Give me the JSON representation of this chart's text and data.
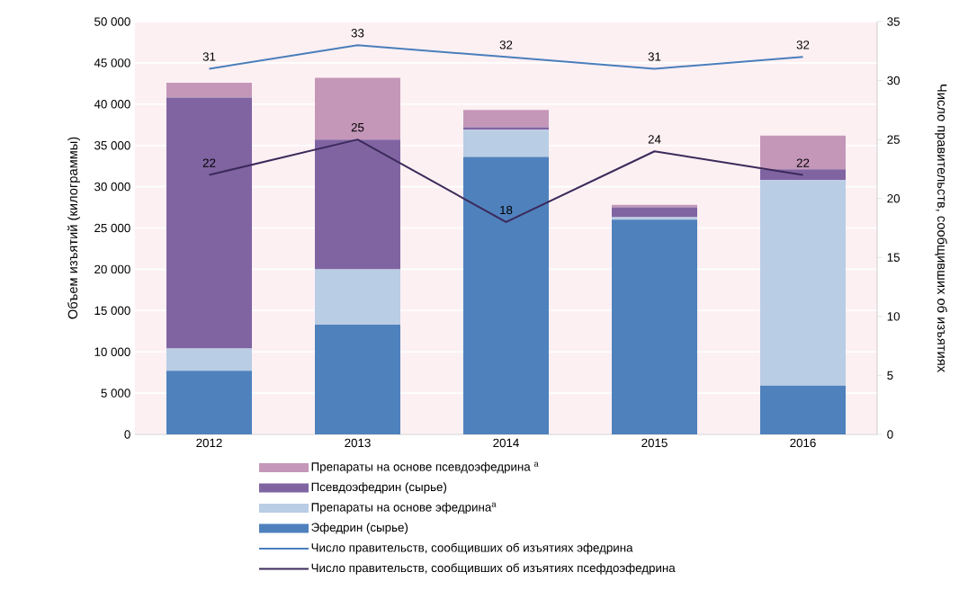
{
  "chart_data": {
    "type": "bar",
    "stacked": true,
    "categories": [
      "2012",
      "2013",
      "2014",
      "2015",
      "2016"
    ],
    "ylabel": "Объем изъятий (килограммы)",
    "y2label": "Число правительств, сообщивших об изъятиях",
    "ylim": [
      0,
      50000
    ],
    "yticks": [
      {
        "value": 0,
        "label": "0"
      },
      {
        "value": 5000,
        "label": "5 000"
      },
      {
        "value": 10000,
        "label": "10 000"
      },
      {
        "value": 15000,
        "label": "15 000"
      },
      {
        "value": 20000,
        "label": "20 000"
      },
      {
        "value": 25000,
        "label": "25 000"
      },
      {
        "value": 30000,
        "label": "30 000"
      },
      {
        "value": 35000,
        "label": "35 000"
      },
      {
        "value": 40000,
        "label": "40 000"
      },
      {
        "value": 45000,
        "label": "45 000"
      },
      {
        "value": 50000,
        "label": "50 000"
      }
    ],
    "y2lim": [
      0,
      35
    ],
    "y2ticks": [
      0,
      5,
      10,
      15,
      20,
      25,
      30,
      35
    ],
    "grid": "y",
    "legend": "bottom",
    "series": [
      {
        "name": "Эфедрин  (сырье)",
        "color": "#4f81bd",
        "values": [
          7700,
          13300,
          33600,
          26000,
          5900
        ]
      },
      {
        "name": "Препараты на основе эфедрина$^{а}$",
        "color": "#b9cde5",
        "values": [
          2700,
          6700,
          3300,
          300,
          24900
        ]
      },
      {
        "name": "Псевдоэфедрин  (сырье)",
        "color": "#8064a2",
        "values": [
          30400,
          15700,
          300,
          1200,
          1300
        ]
      },
      {
        "name": "Препараты на основе псевдоэфедрина $^{а}$",
        "color": "#c497b9",
        "values": [
          1800,
          7500,
          2100,
          300,
          4100
        ]
      },
      {
        "name": "Число правительств, сообщивших  об изъятиях эфедрина",
        "type": "line",
        "axis": "y2",
        "color": "#4a7ebb",
        "values": [
          31,
          33,
          32,
          31,
          32
        ],
        "value_labels": [
          "31",
          "33",
          "32",
          "31",
          "32"
        ]
      },
      {
        "name": "Число правительств, сообщивших  об изъятиях псефдоэфедрина",
        "type": "line",
        "axis": "y2",
        "color": "#3b2a5a",
        "values": [
          22,
          25,
          18,
          24,
          22
        ],
        "value_labels": [
          "22",
          "25",
          "18",
          "24",
          "22"
        ]
      }
    ]
  }
}
